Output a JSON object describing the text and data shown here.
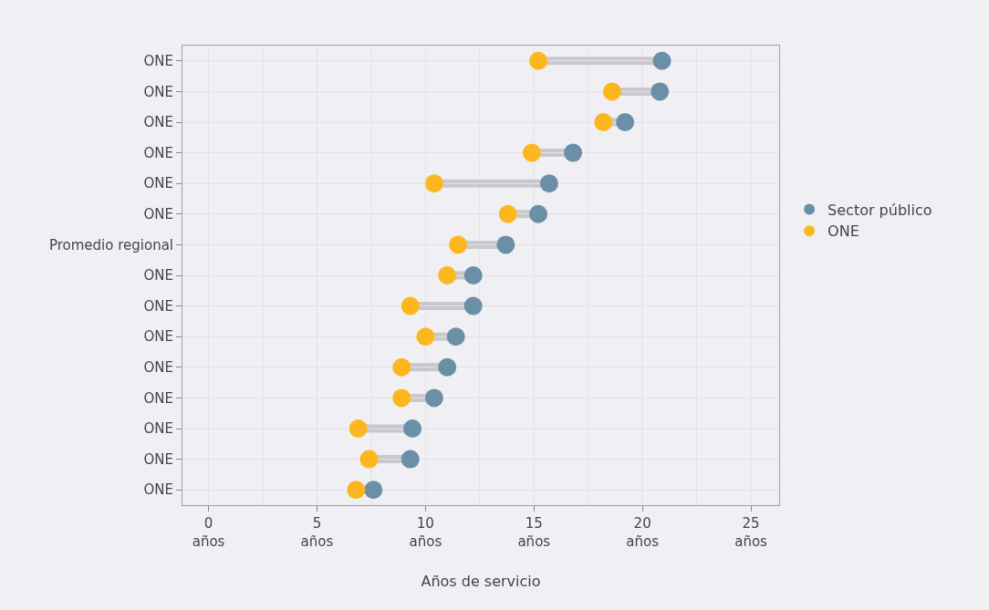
{
  "chart_data": {
    "type": "scatter",
    "orientation": "horizontal",
    "xlabel": "Años de servicio",
    "categories": [
      "ONE",
      "ONE",
      "ONE",
      "ONE",
      "ONE",
      "ONE",
      "Promedio regional",
      "ONE",
      "ONE",
      "ONE",
      "ONE",
      "ONE",
      "ONE",
      "ONE",
      "ONE"
    ],
    "series": [
      {
        "name": "Sector público",
        "color": "#6a8fa6",
        "values": [
          20.9,
          20.8,
          19.2,
          16.8,
          15.7,
          15.2,
          13.7,
          12.2,
          12.2,
          11.4,
          11.0,
          10.4,
          9.4,
          9.3,
          7.6
        ]
      },
      {
        "name": "ONE",
        "color": "#fdb71e",
        "values": [
          15.2,
          18.6,
          18.2,
          14.9,
          10.4,
          13.8,
          11.5,
          11.0,
          9.3,
          10.0,
          8.9,
          8.9,
          6.9,
          7.4,
          6.8
        ]
      }
    ],
    "xlim": [
      -1.2,
      26.3
    ],
    "xticks": [
      {
        "value": 0,
        "label": "0\naños"
      },
      {
        "value": 5,
        "label": "5\naños"
      },
      {
        "value": 10,
        "label": "10\naños"
      },
      {
        "value": 15,
        "label": "15\naños"
      },
      {
        "value": 20,
        "label": "20\naños"
      },
      {
        "value": 25,
        "label": "25\naños"
      }
    ],
    "grid": true,
    "legend": "right",
    "marker": "circle"
  }
}
